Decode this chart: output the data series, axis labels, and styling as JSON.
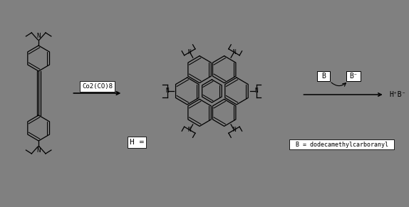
{
  "background_color": "#808080",
  "figure_width": 5.74,
  "figure_height": 2.91,
  "dpi": 100,
  "reagent_label": "Co2(CO)8",
  "h_label": "H =",
  "b_label": "B = dodecamethylcarboranyl",
  "line_color": "#000000",
  "box_bg": "#ffffff",
  "lw": 0.9
}
